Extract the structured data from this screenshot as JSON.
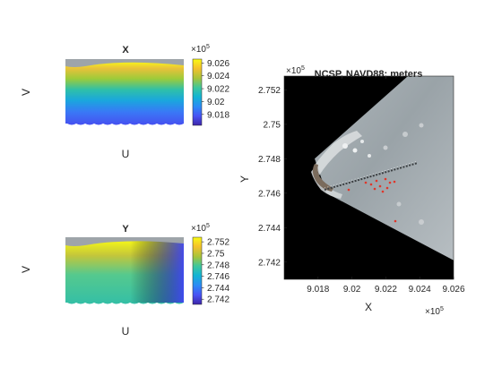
{
  "chart_data": [
    {
      "type": "heatmap",
      "title": "X",
      "xlabel": "U",
      "ylabel": "V",
      "colorbar": {
        "exponent_label": "×10",
        "exponent_power": "5",
        "ticks": [
          {
            "value": 9.018,
            "label": "9.018"
          },
          {
            "value": 9.02,
            "label": "9.02"
          },
          {
            "value": 9.022,
            "label": "9.022"
          },
          {
            "value": 9.024,
            "label": "9.024"
          },
          {
            "value": 9.026,
            "label": "9.026"
          }
        ],
        "range": [
          9.0163,
          9.0266
        ]
      },
      "colormap": [
        "#3e26a8",
        "#4852f4",
        "#2d8af6",
        "#13b4d4",
        "#3fc79c",
        "#a6c43b",
        "#f5c12d",
        "#f9fb15"
      ]
    },
    {
      "type": "heatmap",
      "title": "Y",
      "xlabel": "U",
      "ylabel": "V",
      "colorbar": {
        "exponent_label": "×10",
        "exponent_power": "5",
        "ticks": [
          {
            "value": 2.742,
            "label": "2.742"
          },
          {
            "value": 2.744,
            "label": "2.744"
          },
          {
            "value": 2.746,
            "label": "2.746"
          },
          {
            "value": 2.748,
            "label": "2.748"
          },
          {
            "value": 2.75,
            "label": "2.75"
          },
          {
            "value": 2.752,
            "label": "2.752"
          }
        ],
        "range": [
          2.7411,
          2.7528
        ]
      },
      "colormap": [
        "#3e26a8",
        "#4852f4",
        "#2d8af6",
        "#13b4d4",
        "#3fc79c",
        "#a6c43b",
        "#f5c12d",
        "#f9fb15"
      ]
    },
    {
      "type": "heatmap",
      "title": "NCSP, NAVD88; meters",
      "xlabel": "X",
      "ylabel": "Y",
      "x_exponent_label": "×10",
      "x_exponent_power": "5",
      "y_exponent_label": "×10",
      "y_exponent_power": "5",
      "xlim": [
        9.016,
        9.026
      ],
      "ylim": [
        2.741,
        2.7528
      ],
      "xticks": [
        {
          "value": 9.018,
          "label": "9.018"
        },
        {
          "value": 9.02,
          "label": "9.02"
        },
        {
          "value": 9.022,
          "label": "9.022"
        },
        {
          "value": 9.024,
          "label": "9.024"
        },
        {
          "value": 9.026,
          "label": "9.026"
        }
      ],
      "yticks": [
        {
          "value": 2.742,
          "label": "2.742"
        },
        {
          "value": 2.744,
          "label": "2.744"
        },
        {
          "value": 2.746,
          "label": "2.746"
        },
        {
          "value": 2.748,
          "label": "2.748"
        },
        {
          "value": 2.75,
          "label": "2.75"
        },
        {
          "value": 2.752,
          "label": "2.752"
        }
      ],
      "background_color": "#000000",
      "coverage_polygon": [
        [
          9.026,
          2.7528
        ],
        [
          9.0233,
          2.7528
        ],
        [
          9.0178,
          2.748
        ],
        [
          9.0185,
          2.746
        ],
        [
          9.026,
          2.7421
        ]
      ],
      "camera_origin": [
        9.0178,
        2.7479
      ]
    }
  ]
}
